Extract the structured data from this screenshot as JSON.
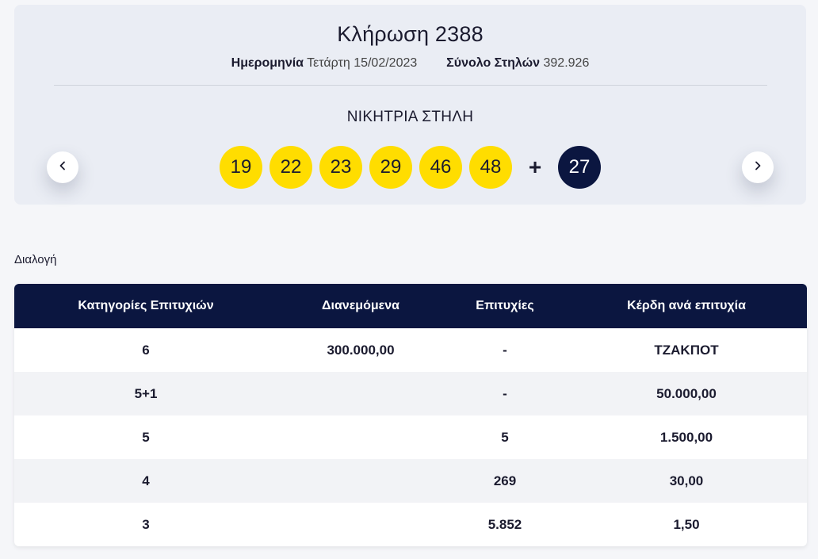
{
  "draw": {
    "title": "Κλήρωση 2388",
    "date_label": "Ημερομηνία",
    "date_value": "Τετάρτη 15/02/2023",
    "columns_label": "Σύνολο Στηλών",
    "columns_value": "392.926",
    "winning_label": "ΝΙΚΗΤΡΙΑ ΣΤΗΛΗ",
    "numbers": [
      "19",
      "22",
      "23",
      "29",
      "46",
      "48"
    ],
    "plus": "+",
    "bonus": "27",
    "prev_icon": "chevron-left-icon",
    "next_icon": "chevron-right-icon"
  },
  "section": {
    "label": "Διαλογή"
  },
  "table": {
    "headers": [
      "Κατηγορίες Επιτυχιών",
      "Διανεμόμενα",
      "Επιτυχίες",
      "Κέρδη ανά επιτυχία"
    ],
    "rows": [
      [
        "6",
        "300.000,00",
        "-",
        "ΤΖΑΚΠΟΤ"
      ],
      [
        "5+1",
        "",
        "-",
        "50.000,00"
      ],
      [
        "5",
        "",
        "5",
        "1.500,00"
      ],
      [
        "4",
        "",
        "269",
        "30,00"
      ],
      [
        "3",
        "",
        "5.852",
        "1,50"
      ]
    ]
  },
  "colors": {
    "ball": "#ffdd00",
    "bonus_ball": "#0b1640",
    "header_bg": "#0b1640"
  }
}
